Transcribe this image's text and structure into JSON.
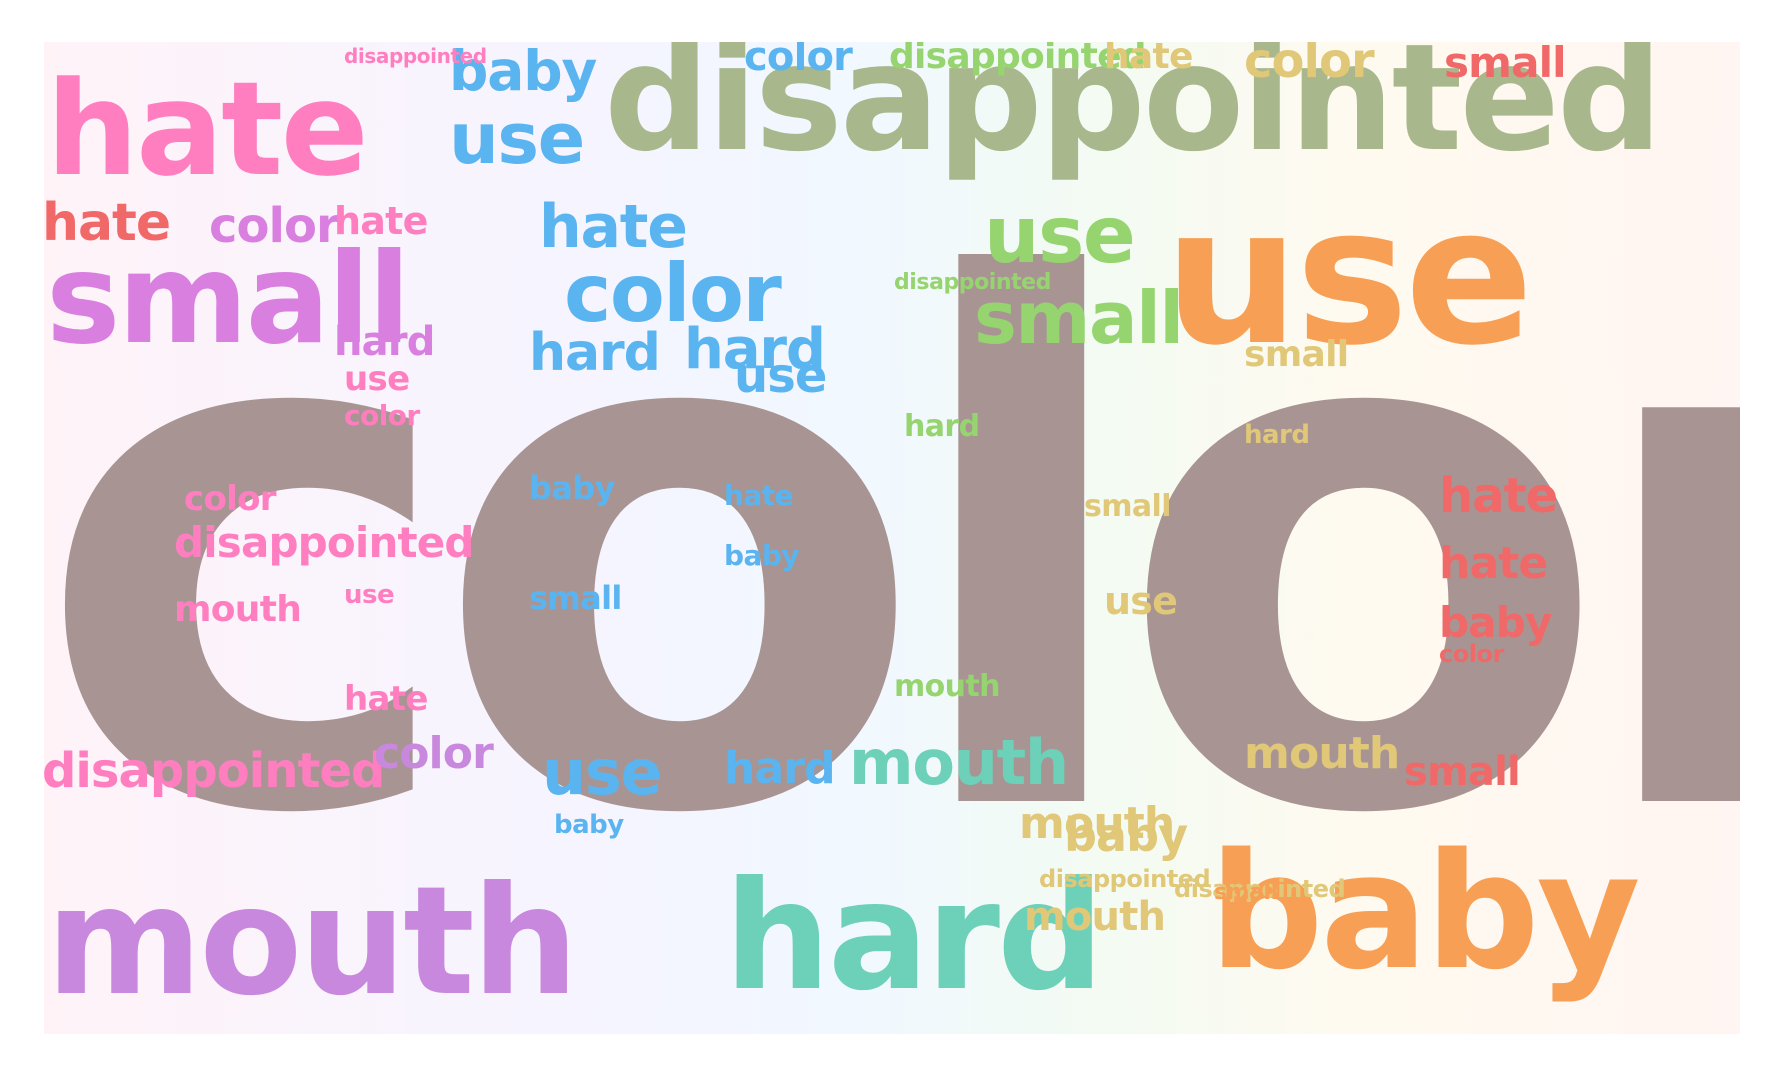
{
  "cloud": {
    "hero": "color",
    "words": [
      "disappointed",
      "hate",
      "use",
      "small",
      "color",
      "mouth",
      "hard",
      "baby",
      "use",
      "baby",
      "hate",
      "color",
      "mouth",
      "disappointed",
      "small",
      "hate",
      "color",
      "hate",
      "small",
      "use",
      "disappointed",
      "hard",
      "color",
      "hate",
      "baby",
      "hard",
      "mouth",
      "use",
      "small",
      "disappointed",
      "hate",
      "baby",
      "use",
      "color",
      "mouth",
      "small",
      "hard",
      "disappointed",
      "color",
      "hate",
      "baby",
      "use",
      "small",
      "hard",
      "mouth",
      "disappointed",
      "hate",
      "use",
      "baby",
      "color",
      "small",
      "hard",
      "mouth",
      "disappointed",
      "use",
      "hate",
      "small",
      "color",
      "baby",
      "mouth",
      "hard",
      "disappointed"
    ]
  },
  "colors": {
    "hero": "#a89593",
    "pink": "#ff7ec0",
    "violet": "#d97fe0",
    "purple": "#c888dd",
    "sky": "#5ab4f0",
    "sage": "#a8b88c",
    "green": "#96d470",
    "mint": "#6dd0b8",
    "gold": "#e0c878",
    "orange": "#f7a055",
    "coral": "#f06868",
    "salmon": "#ff9090"
  }
}
